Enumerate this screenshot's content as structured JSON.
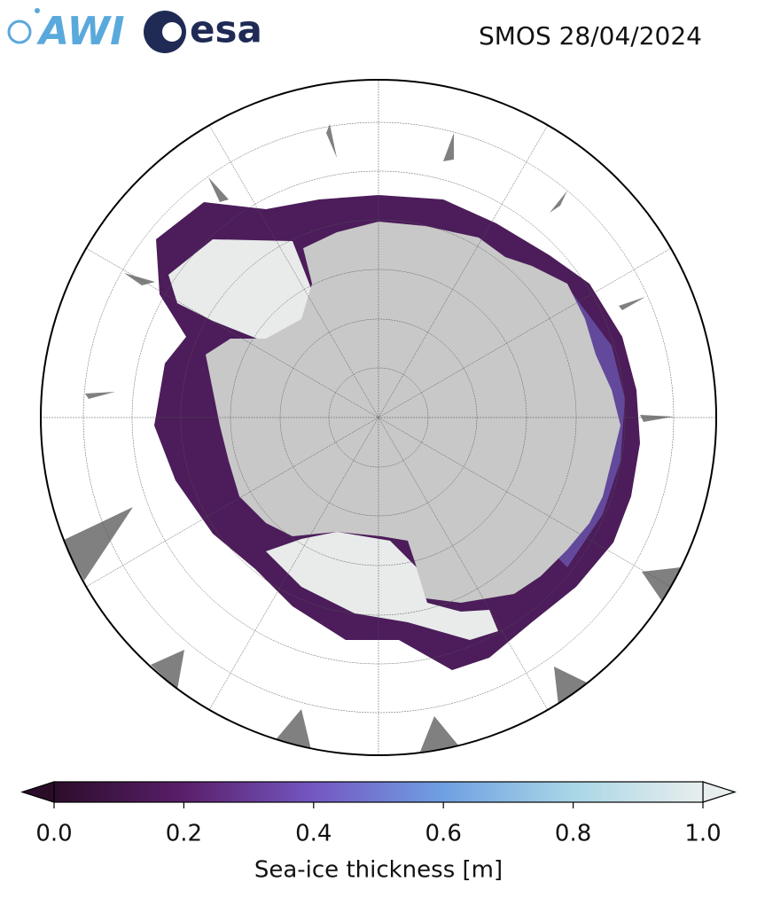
{
  "header": {
    "logos": [
      "AWI",
      "esa"
    ],
    "title": "SMOS 28/04/2024"
  },
  "colorbar": {
    "label": "Sea-ice thickness [m]",
    "lim": [
      0,
      1
    ],
    "ticks": [
      {
        "value": 0,
        "label": "0.0"
      },
      0.2,
      0.4,
      0.6,
      0.8,
      {
        "value": 1,
        "label": "1.0"
      }
    ],
    "colormap": [
      "#2b0d2a",
      "#5a1f6a",
      "#7457c2",
      "#6fa0e2",
      "#a9d6e6",
      "#e8eeee"
    ]
  }
}
